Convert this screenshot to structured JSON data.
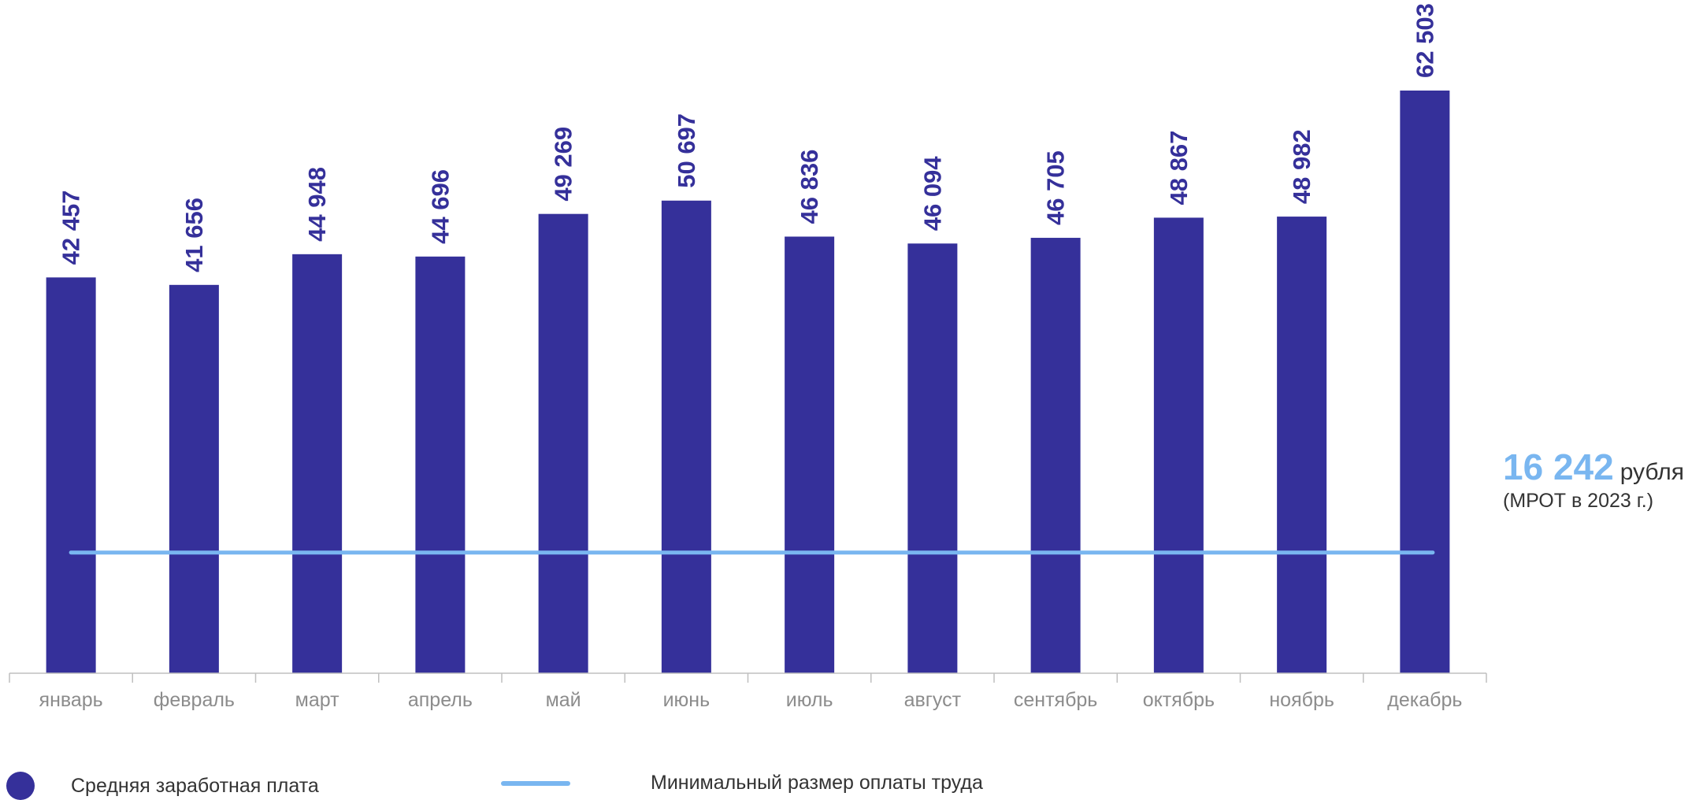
{
  "chart_data": {
    "type": "bar",
    "categories": [
      "январь",
      "февраль",
      "март",
      "апрель",
      "май",
      "июнь",
      "июль",
      "август",
      "сентябрь",
      "октябрь",
      "ноябрь",
      "декабрь"
    ],
    "series": [
      {
        "name": "Средняя заработная плата",
        "values": [
          42457,
          41656,
          44948,
          44696,
          49269,
          50697,
          46836,
          46094,
          46705,
          48867,
          48982,
          62503
        ],
        "labels": [
          "42 457",
          "41 656",
          "44 948",
          "44 696",
          "49 269",
          "50 697",
          "46 836",
          "46 094",
          "46 705",
          "48 867",
          "48 982",
          "62 503"
        ],
        "color": "#35309a"
      }
    ],
    "reference_line": {
      "name": "Минимальный размер оплаты труда",
      "value": 16242,
      "color": "#79b6f0"
    },
    "ylim": [
      0,
      65000
    ],
    "grid": false,
    "legend_position": "bottom"
  },
  "callout": {
    "value": "16 242",
    "unit": "рубля",
    "note": "(МРОТ в 2023 г.)"
  },
  "legend": {
    "bar_label": "Средняя заработная плата",
    "line_label": "Минимальный размер оплаты труда"
  }
}
